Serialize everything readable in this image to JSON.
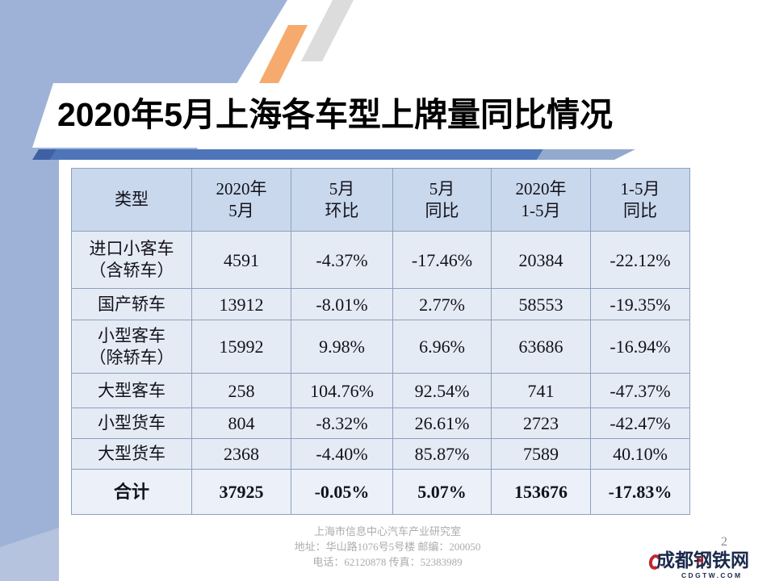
{
  "slide": {
    "title": "2020年5月上海各车型上牌量同比情况",
    "page_number": "2"
  },
  "table": {
    "headers": [
      "类型",
      "2020年\n5月",
      "5月\n环比",
      "5月\n同比",
      "2020年\n1-5月",
      "1-5月\n同比"
    ],
    "rows": [
      [
        "进口小客车\n（含轿车）",
        "4591",
        "-4.37%",
        "-17.46%",
        "20384",
        "-22.12%"
      ],
      [
        "国产轿车",
        "13912",
        "-8.01%",
        "2.77%",
        "58553",
        "-19.35%"
      ],
      [
        "小型客车\n（除轿车）",
        "15992",
        "9.98%",
        "6.96%",
        "63686",
        "-16.94%"
      ],
      [
        "大型客车",
        "258",
        "104.76%",
        "92.54%",
        "741",
        "-47.37%"
      ],
      [
        "小型货车",
        "804",
        "-8.32%",
        "26.61%",
        "2723",
        "-42.47%"
      ],
      [
        "大型货车",
        "2368",
        "-4.40%",
        "85.87%",
        "7589",
        "40.10%"
      ],
      [
        "合计",
        "37925",
        "-0.05%",
        "5.07%",
        "153676",
        "-17.83%"
      ]
    ]
  },
  "chart_data": {
    "type": "table",
    "title": "2020年5月上海各车型上牌量同比情况",
    "columns": [
      "类型",
      "2020年5月",
      "5月环比",
      "5月同比",
      "2020年1-5月",
      "1-5月同比"
    ],
    "rows": [
      [
        "进口小客车（含轿车）",
        4591,
        "-4.37%",
        "-17.46%",
        20384,
        "-22.12%"
      ],
      [
        "国产轿车",
        13912,
        "-8.01%",
        "2.77%",
        58553,
        "-19.35%"
      ],
      [
        "小型客车（除轿车）",
        15992,
        "9.98%",
        "6.96%",
        63686,
        "-16.94%"
      ],
      [
        "大型客车",
        258,
        "104.76%",
        "92.54%",
        741,
        "-47.37%"
      ],
      [
        "小型货车",
        804,
        "-8.32%",
        "26.61%",
        2723,
        "-42.47%"
      ],
      [
        "大型货车",
        2368,
        "-4.40%",
        "85.87%",
        7589,
        "40.10%"
      ],
      [
        "合计",
        37925,
        "-0.05%",
        "5.07%",
        153676,
        "-17.83%"
      ]
    ]
  },
  "footer": {
    "lines": [
      "上海市信息中心汽车产业研究室",
      "地址：华山路1076号5号楼  邮编：200050",
      "电话：62120878 传真：52383989"
    ]
  },
  "watermark": {
    "name": "成都钢铁网",
    "domain": "CDGTW.COM"
  },
  "colors": {
    "deco_blue": "#9DB2D6",
    "deco_blue_light": "#B5C3DE",
    "stripe_orange": "#F6AA6D",
    "stripe_gray": "#DCDCDC",
    "band_cap": "#3F61A4",
    "band_dark": "#4E75B9",
    "band_light": "#93AACE",
    "table_border": "#8CA0C0",
    "header_bg": "#C9D8EC",
    "row_bg": "#E5EBF4",
    "total_bg": "#ECF0F8",
    "text_dark": "#12121C",
    "footer_gray": "#ACACAC",
    "logo_navy": "#1B2A4C",
    "logo_red": "#C1272D"
  }
}
